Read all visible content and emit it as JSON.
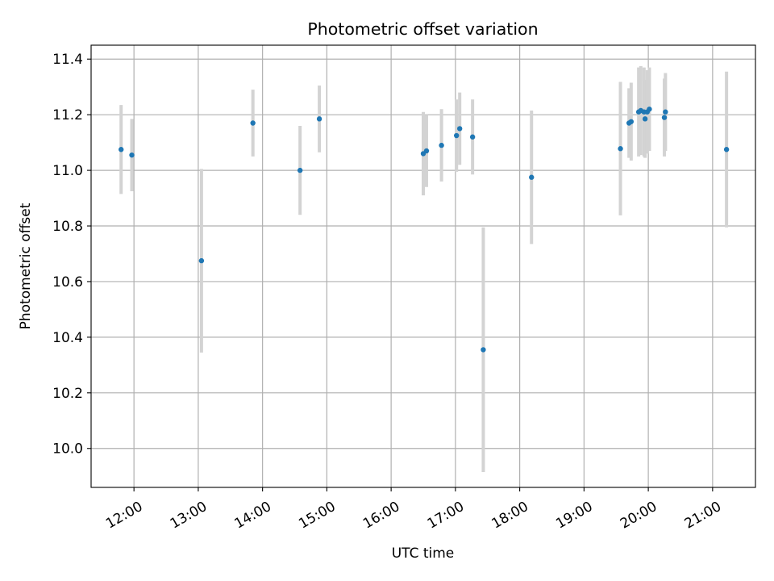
{
  "chart_data": {
    "type": "scatter",
    "title": "Photometric offset variation",
    "xlabel": "UTC time",
    "ylabel": "Photometric offset",
    "x_ticks": [
      "12:00",
      "13:00",
      "14:00",
      "15:00",
      "16:00",
      "17:00",
      "18:00",
      "19:00",
      "20:00",
      "21:00"
    ],
    "y_ticks": [
      "10.0",
      "10.2",
      "10.4",
      "10.6",
      "10.8",
      "11.0",
      "11.2",
      "11.4"
    ],
    "xlim": [
      "11:20",
      "21:40"
    ],
    "ylim": [
      9.86,
      11.45
    ],
    "grid": true,
    "colors": {
      "points": "#1f77b4",
      "errorbars": "#d3d3d3"
    },
    "points": [
      {
        "time": "11:48",
        "y": 11.075,
        "yerr": 0.16
      },
      {
        "time": "11:58",
        "y": 11.055,
        "yerr": 0.13
      },
      {
        "time": "13:03",
        "y": 10.675,
        "yerr": 0.33
      },
      {
        "time": "13:51",
        "y": 11.17,
        "yerr": 0.12
      },
      {
        "time": "14:35",
        "y": 11.0,
        "yerr": 0.16
      },
      {
        "time": "14:53",
        "y": 11.185,
        "yerr": 0.12
      },
      {
        "time": "16:30",
        "y": 11.06,
        "yerr": 0.15
      },
      {
        "time": "16:33",
        "y": 11.07,
        "yerr": 0.13
      },
      {
        "time": "16:47",
        "y": 11.09,
        "yerr": 0.13
      },
      {
        "time": "17:01",
        "y": 11.125,
        "yerr": 0.13
      },
      {
        "time": "17:04",
        "y": 11.15,
        "yerr": 0.13
      },
      {
        "time": "17:16",
        "y": 11.12,
        "yerr": 0.135
      },
      {
        "time": "17:26",
        "y": 10.355,
        "yerr": 0.44
      },
      {
        "time": "18:11",
        "y": 10.975,
        "yerr": 0.24
      },
      {
        "time": "19:34",
        "y": 11.078,
        "yerr": 0.24
      },
      {
        "time": "19:42",
        "y": 11.17,
        "yerr": 0.125
      },
      {
        "time": "19:44",
        "y": 11.175,
        "yerr": 0.14
      },
      {
        "time": "19:51",
        "y": 11.21,
        "yerr": 0.16
      },
      {
        "time": "19:53",
        "y": 11.215,
        "yerr": 0.16
      },
      {
        "time": "19:56",
        "y": 11.21,
        "yerr": 0.16
      },
      {
        "time": "19:57",
        "y": 11.185,
        "yerr": 0.14
      },
      {
        "time": "19:59",
        "y": 11.21,
        "yerr": 0.15
      },
      {
        "time": "20:01",
        "y": 11.22,
        "yerr": 0.15
      },
      {
        "time": "20:15",
        "y": 11.19,
        "yerr": 0.14
      },
      {
        "time": "20:16",
        "y": 11.21,
        "yerr": 0.14
      },
      {
        "time": "21:13",
        "y": 11.075,
        "yerr": 0.28
      }
    ]
  }
}
